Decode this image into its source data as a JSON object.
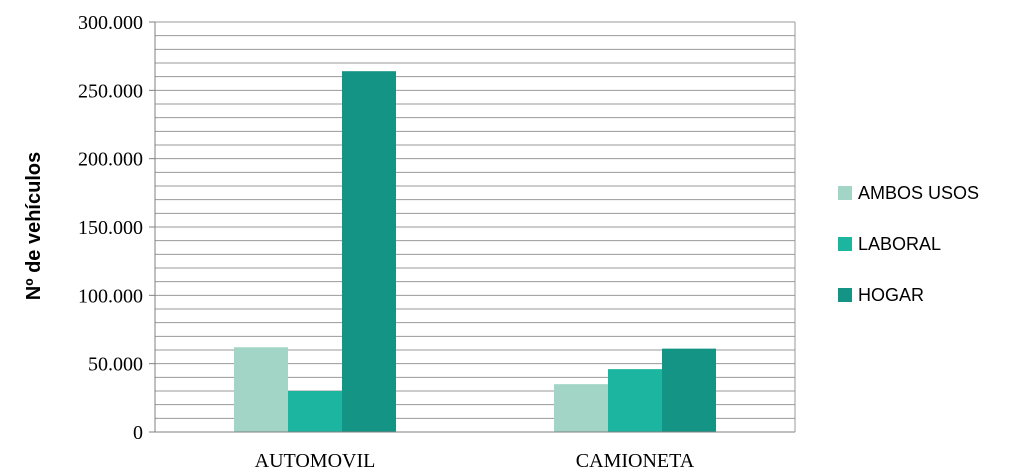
{
  "chart_data": {
    "type": "bar",
    "ylabel": "Nº de vehículos",
    "xlabel": "",
    "categories": [
      "AUTOMOVIL",
      "CAMIONETA"
    ],
    "series": [
      {
        "name": "AMBOS USOS",
        "values": [
          62000,
          35000
        ],
        "color": "#a2d5c6"
      },
      {
        "name": "LABORAL",
        "values": [
          30000,
          46000
        ],
        "color": "#1cb5a0"
      },
      {
        "name": "HOGAR",
        "values": [
          264000,
          61000
        ],
        "color": "#149484"
      }
    ],
    "yticks": [
      {
        "value": 0,
        "label": "0"
      },
      {
        "value": 50000,
        "label": "50.000"
      },
      {
        "value": 100000,
        "label": "100.000"
      },
      {
        "value": 150000,
        "label": "150.000"
      },
      {
        "value": 200000,
        "label": "200.000"
      },
      {
        "value": 250000,
        "label": "250.000"
      },
      {
        "value": 300000,
        "label": "300.000"
      }
    ],
    "ylim": [
      0,
      300000
    ],
    "minor_grid_step": 10000,
    "grid": true,
    "legend_position": "right"
  }
}
